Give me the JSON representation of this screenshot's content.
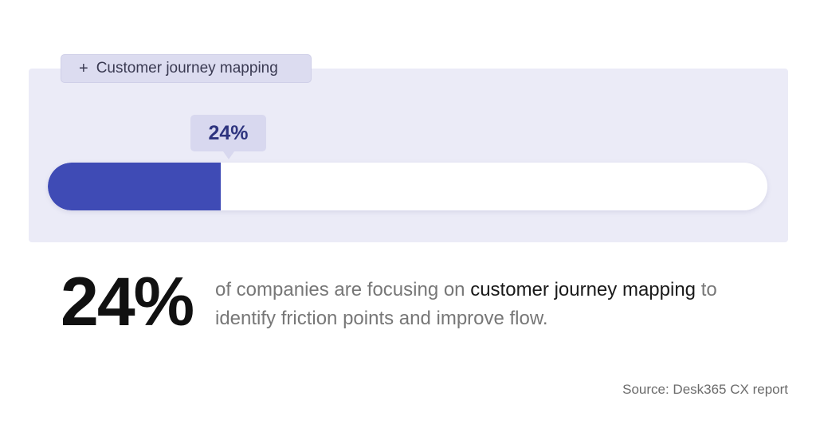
{
  "tag": {
    "icon": "plus-icon",
    "label": "Customer journey mapping"
  },
  "progress": {
    "percent": 24,
    "label": "24%",
    "fill_color": "#3f4bb5",
    "track_color": "#ffffff"
  },
  "stat": {
    "value": "24%",
    "text_before": "of companies are focusing on",
    "highlight": "customer journey mapping",
    "text_after": "to identify friction points and improve flow."
  },
  "source": "Source: Desk365 CX report",
  "colors": {
    "card_background": "#ebebf7",
    "accent": "#3f4bb5",
    "bubble_text": "#2e347f"
  }
}
